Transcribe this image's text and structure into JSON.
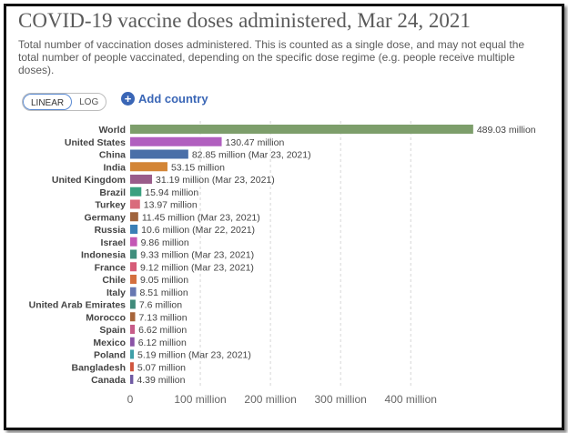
{
  "title": "COVID-19 vaccine doses administered, Mar 24, 2021",
  "subtitle": "Total number of vaccination doses administered. This is counted as a single dose, and may not equal the total number of people vaccinated, depending on the specific dose regime (e.g. people receive multiple doses).",
  "controls": {
    "linear_label": "LINEAR",
    "log_label": "LOG",
    "add_country_label": "Add country"
  },
  "chart_data": {
    "type": "bar",
    "orientation": "horizontal",
    "title": "COVID-19 vaccine doses administered, Mar 24, 2021",
    "xlim": [
      0,
      500
    ],
    "x_ticks": [
      0,
      100,
      200,
      300,
      400
    ],
    "x_tick_labels": [
      "0",
      "100 million",
      "200 million",
      "300 million",
      "400 million"
    ],
    "scale": "linear",
    "grid": "vertical dashed",
    "categories": [
      "World",
      "United States",
      "China",
      "India",
      "United Kingdom",
      "Brazil",
      "Turkey",
      "Germany",
      "Russia",
      "Israel",
      "Indonesia",
      "France",
      "Chile",
      "Italy",
      "United Arab Emirates",
      "Morocco",
      "Spain",
      "Mexico",
      "Poland",
      "Bangladesh",
      "Canada"
    ],
    "values": [
      489.03,
      130.47,
      82.85,
      53.15,
      31.19,
      15.94,
      13.97,
      11.45,
      10.6,
      9.86,
      9.33,
      9.12,
      9.05,
      8.51,
      7.6,
      7.13,
      6.62,
      6.12,
      5.19,
      5.07,
      4.39
    ],
    "value_labels": [
      "489.03 million",
      "130.47 million",
      "82.85 million (Mar 23, 2021)",
      "53.15 million",
      "31.19 million (Mar 23, 2021)",
      "15.94 million",
      "13.97 million",
      "11.45 million (Mar 23, 2021)",
      "10.6 million (Mar 22, 2021)",
      "9.86 million",
      "9.33 million (Mar 23, 2021)",
      "9.12 million (Mar 23, 2021)",
      "9.05 million",
      "8.51 million",
      "7.6 million",
      "7.13 million",
      "6.62 million",
      "6.12 million",
      "5.19 million (Mar 23, 2021)",
      "5.07 million",
      "4.39 million"
    ],
    "colors": [
      "#7d9e6b",
      "#b15fbf",
      "#4a6fa8",
      "#d38536",
      "#9a5c8a",
      "#3aa07f",
      "#d96b7c",
      "#a0643d",
      "#3b7fb6",
      "#c458b5",
      "#3f8f7d",
      "#d65c78",
      "#d46f3e",
      "#6878b2",
      "#3f8a7a",
      "#a7653a",
      "#c75c89",
      "#8a53a6",
      "#3e9fa8",
      "#d0553e",
      "#6f5aa3"
    ]
  }
}
